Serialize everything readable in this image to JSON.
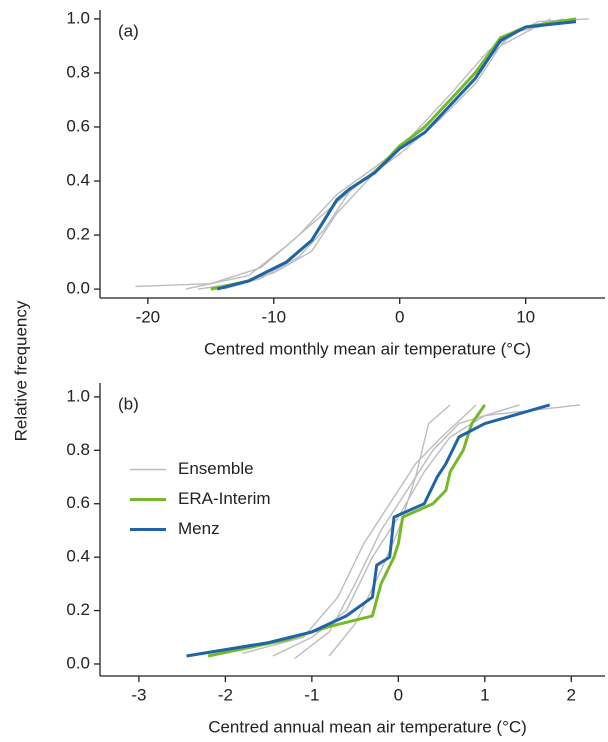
{
  "ylabel": "Relative frequency",
  "chart_data": [
    {
      "type": "line",
      "label": "(a)",
      "xlabel": "Centred monthly mean air temperature (°C)",
      "xlim": [
        -23.8,
        16.3
      ],
      "ylim": [
        -0.033,
        1.033
      ],
      "xticks": [
        -20,
        -10,
        0,
        10
      ],
      "yticks": [
        {
          "value": 0,
          "label": "0.0"
        },
        {
          "value": 0.2,
          "label": "0.2"
        },
        {
          "value": 0.4,
          "label": "0.4"
        },
        {
          "value": 0.6,
          "label": "0.6"
        },
        {
          "value": 0.8,
          "label": "0.8"
        },
        {
          "value": 1,
          "label": "1.0"
        }
      ],
      "series": [
        {
          "color": "#bdbdbd",
          "lines": [
            {
              "x": [
                -21,
                -15,
                -11,
                -8,
                -5,
                -2,
                0,
                3,
                6,
                9,
                14
              ],
              "values": [
                0.01,
                0.02,
                0.08,
                0.2,
                0.35,
                0.45,
                0.52,
                0.65,
                0.8,
                0.95,
                1.0
              ]
            },
            {
              "x": [
                -17,
                -12,
                -9,
                -6,
                -3,
                0,
                3,
                6,
                8,
                12
              ],
              "values": [
                0.0,
                0.05,
                0.16,
                0.28,
                0.4,
                0.5,
                0.62,
                0.76,
                0.9,
                1.0
              ]
            },
            {
              "x": [
                -16,
                -13,
                -10,
                -7,
                -5,
                -2,
                1,
                4,
                7,
                10,
                13
              ],
              "values": [
                0.0,
                0.02,
                0.06,
                0.14,
                0.28,
                0.43,
                0.57,
                0.72,
                0.88,
                0.97,
                1.0
              ]
            },
            {
              "x": [
                -14,
                -11,
                -8,
                -6,
                -4,
                -1,
                2,
                5,
                8,
                11,
                15
              ],
              "values": [
                0.0,
                0.04,
                0.12,
                0.22,
                0.36,
                0.48,
                0.6,
                0.75,
                0.92,
                0.99,
                1.0
              ]
            }
          ]
        },
        {
          "color": "#76b82a",
          "lines": [
            {
              "x": [
                -15,
                -12,
                -9,
                -7,
                -5,
                -4,
                -2,
                0,
                2,
                4,
                6,
                8,
                10,
                14
              ],
              "values": [
                0,
                0.03,
                0.1,
                0.18,
                0.33,
                0.37,
                0.43,
                0.53,
                0.6,
                0.7,
                0.8,
                0.93,
                0.97,
                1.0
              ]
            }
          ]
        },
        {
          "color": "#1f64a8",
          "lines": [
            {
              "x": [
                -14.5,
                -12,
                -9,
                -7,
                -5,
                -4,
                -2,
                0,
                2,
                4,
                6,
                8,
                10,
                14
              ],
              "values": [
                0,
                0.03,
                0.1,
                0.18,
                0.33,
                0.37,
                0.43,
                0.52,
                0.58,
                0.68,
                0.78,
                0.92,
                0.97,
                0.99
              ]
            }
          ]
        }
      ]
    },
    {
      "type": "line",
      "label": "(b)",
      "xlabel": "Centred annual mean air temperature (°C)",
      "xlim": [
        -3.45,
        2.39
      ],
      "ylim": [
        -0.045,
        1.052
      ],
      "xticks": [
        -3,
        -2,
        -1,
        0,
        1,
        2
      ],
      "yticks": [
        {
          "value": 0,
          "label": "0.0"
        },
        {
          "value": 0.2,
          "label": "0.2"
        },
        {
          "value": 0.4,
          "label": "0.4"
        },
        {
          "value": 0.6,
          "label": "0.6"
        },
        {
          "value": 0.8,
          "label": "0.8"
        },
        {
          "value": 1,
          "label": "1.0"
        }
      ],
      "legend": "center left",
      "series": [
        {
          "name": "Ensemble",
          "color": "#bdbdbd",
          "lines": [
            {
              "x": [
                -1.45,
                -1,
                -0.6,
                -0.3,
                0,
                0.3,
                0.6,
                1,
                2.1
              ],
              "values": [
                0.03,
                0.1,
                0.2,
                0.4,
                0.55,
                0.72,
                0.85,
                0.93,
                0.97
              ]
            },
            {
              "x": [
                -1.2,
                -0.8,
                -0.5,
                -0.2,
                0.1,
                0.4,
                0.7,
                1.4
              ],
              "values": [
                0.02,
                0.12,
                0.3,
                0.5,
                0.65,
                0.8,
                0.9,
                0.97
              ]
            },
            {
              "x": [
                -0.8,
                -0.5,
                -0.2,
                0,
                0.2,
                0.35,
                0.6
              ],
              "values": [
                0.03,
                0.15,
                0.35,
                0.5,
                0.7,
                0.9,
                0.97
              ]
            },
            {
              "x": [
                -1.8,
                -1.1,
                -0.7,
                -0.4,
                -0.1,
                0.2,
                0.5,
                0.9
              ],
              "values": [
                0.04,
                0.1,
                0.25,
                0.45,
                0.6,
                0.75,
                0.85,
                0.97
              ]
            }
          ]
        },
        {
          "name": "ERA-Interim",
          "color": "#76b82a",
          "lines": [
            {
              "x": [
                -2.2,
                -1.3,
                -0.8,
                -0.3,
                -0.2,
                -0.05,
                0,
                0.05,
                0.4,
                0.55,
                0.6,
                0.75,
                0.85,
                1
              ],
              "values": [
                0.03,
                0.09,
                0.14,
                0.18,
                0.3,
                0.4,
                0.45,
                0.55,
                0.6,
                0.65,
                0.72,
                0.8,
                0.9,
                0.97
              ]
            }
          ]
        },
        {
          "name": "Menz",
          "color": "#1f64a8",
          "lines": [
            {
              "x": [
                -2.45,
                -1.5,
                -1,
                -0.6,
                -0.3,
                -0.25,
                -0.1,
                -0.05,
                0.3,
                0.45,
                0.55,
                0.7,
                1,
                1.75
              ],
              "values": [
                0.03,
                0.08,
                0.12,
                0.18,
                0.25,
                0.37,
                0.4,
                0.55,
                0.6,
                0.7,
                0.75,
                0.85,
                0.9,
                0.97
              ]
            }
          ]
        }
      ]
    }
  ]
}
